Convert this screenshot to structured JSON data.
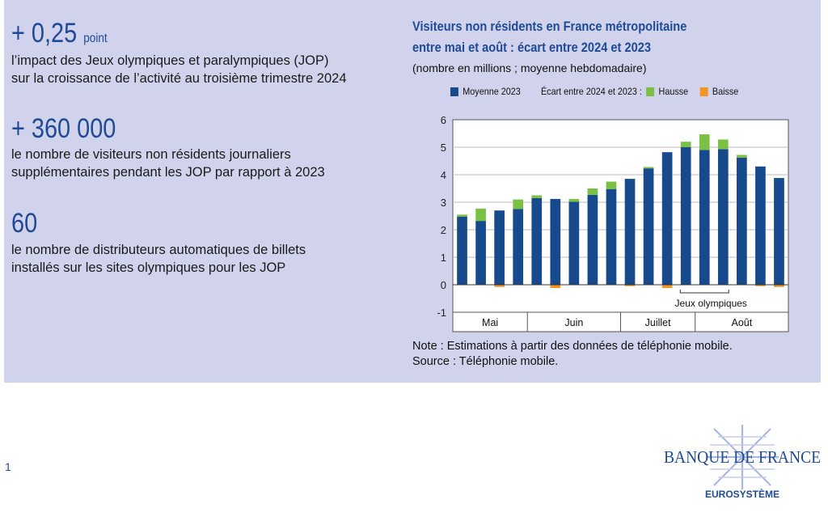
{
  "stats": [
    {
      "value": "+ 0,25",
      "unit": "point",
      "text": [
        "l’impact des Jeux olympiques et paralympiques (JOP)",
        "sur la croissance de l’activité au troisième trimestre 2024"
      ]
    },
    {
      "value": "+ 360 000",
      "text": [
        "le nombre de visiteurs non résidents journaliers",
        "supplémentaires pendant les JOP par rapport à 2023"
      ]
    },
    {
      "value": "60",
      "text": [
        "le nombre de distributeurs automatiques de billets",
        "installés sur les sites olympiques pour les JOP"
      ]
    }
  ],
  "chart_data": {
    "type": "bar",
    "title": [
      "Visiteurs non résidents en France métropolitaine",
      "entre mai et août : écart entre 2024 et 2023"
    ],
    "subtitle": "(nombre en millions ; moyenne hebdomadaire)",
    "legend": {
      "base": "Moyenne 2023",
      "group_label": "Écart entre 2024 et 2023 :",
      "up": "Hausse",
      "down": "Baisse"
    },
    "colors": {
      "base": "#164a8c",
      "up": "#7ac143",
      "down": "#f39423"
    },
    "ylim": [
      -1,
      6
    ],
    "yticks": [
      "-1",
      "0",
      "1",
      "2",
      "3",
      "4",
      "5",
      "6"
    ],
    "months": [
      {
        "label": "Mai",
        "weeks": 4
      },
      {
        "label": "Juin",
        "weeks": 5
      },
      {
        "label": "Juillet",
        "weeks": 4
      },
      {
        "label": "Août",
        "weeks": 5
      }
    ],
    "base": [
      2.48,
      2.32,
      2.7,
      2.75,
      3.15,
      3.12,
      3.02,
      3.27,
      3.48,
      3.85,
      4.23,
      4.82,
      5.0,
      4.9,
      4.93,
      4.62,
      4.3,
      3.88
    ],
    "diff": [
      0.07,
      0.45,
      -0.08,
      0.35,
      0.1,
      -0.12,
      0.1,
      0.23,
      0.27,
      -0.05,
      0.05,
      -0.12,
      0.2,
      0.57,
      0.35,
      0.1,
      -0.05,
      -0.08
    ],
    "annotation": {
      "label": "Jeux olympiques",
      "from_week": 13,
      "to_week": 15
    }
  },
  "note": "Note : Estimations à partir des données de téléphonie mobile.",
  "source": "Source : Téléphonie mobile.",
  "page_number": "1",
  "logo": {
    "name": "BANQUE DE FRANCE",
    "sub": "EUROSYSTÈME"
  }
}
